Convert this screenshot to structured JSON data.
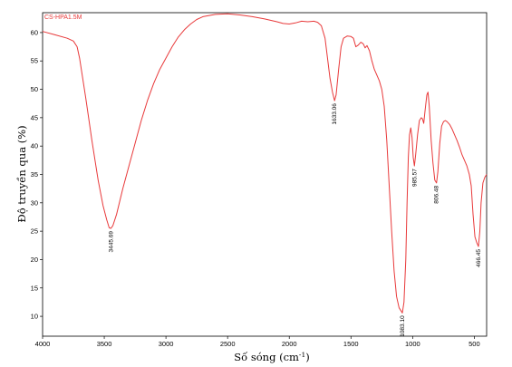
{
  "chart_data": {
    "type": "line",
    "series_label": "CS-HPA1.5M",
    "xlabel": "Số sóng (cm",
    "xlabel_sup": "-1",
    "xlabel_close": ")",
    "ylabel": "Độ truyền qua (%)",
    "xlim": [
      4000,
      400
    ],
    "ylim": [
      6.5,
      63.5
    ],
    "x_reversed": true,
    "grid": false,
    "x_ticks": [
      4000,
      3500,
      3000,
      2500,
      2000,
      1500,
      1000,
      500
    ],
    "y_ticks": [
      10,
      15,
      20,
      25,
      30,
      35,
      40,
      45,
      50,
      55,
      60
    ],
    "line_color": "#e8393a",
    "series": [
      {
        "points": [
          [
            4000,
            60.2
          ],
          [
            3900,
            59.6
          ],
          [
            3800,
            59.0
          ],
          [
            3750,
            58.5
          ],
          [
            3720,
            57.5
          ],
          [
            3700,
            55.5
          ],
          [
            3650,
            48.5
          ],
          [
            3600,
            41.0
          ],
          [
            3550,
            34.0
          ],
          [
            3510,
            29.5
          ],
          [
            3480,
            27.0
          ],
          [
            3460,
            25.6
          ],
          [
            3445.69,
            25.5
          ],
          [
            3430,
            26.0
          ],
          [
            3400,
            28.0
          ],
          [
            3350,
            32.5
          ],
          [
            3300,
            36.5
          ],
          [
            3250,
            40.5
          ],
          [
            3200,
            44.5
          ],
          [
            3150,
            48.0
          ],
          [
            3100,
            51.0
          ],
          [
            3050,
            53.5
          ],
          [
            3000,
            55.5
          ],
          [
            2950,
            57.5
          ],
          [
            2900,
            59.2
          ],
          [
            2850,
            60.5
          ],
          [
            2800,
            61.5
          ],
          [
            2750,
            62.3
          ],
          [
            2700,
            62.8
          ],
          [
            2600,
            63.2
          ],
          [
            2500,
            63.3
          ],
          [
            2400,
            63.1
          ],
          [
            2300,
            62.8
          ],
          [
            2200,
            62.4
          ],
          [
            2100,
            61.9
          ],
          [
            2050,
            61.6
          ],
          [
            2000,
            61.5
          ],
          [
            1950,
            61.7
          ],
          [
            1900,
            62.0
          ],
          [
            1850,
            61.9
          ],
          [
            1800,
            62.0
          ],
          [
            1770,
            61.8
          ],
          [
            1740,
            61.2
          ],
          [
            1710,
            59.0
          ],
          [
            1690,
            55.5
          ],
          [
            1670,
            52.0
          ],
          [
            1650,
            49.5
          ],
          [
            1633.06,
            48.0
          ],
          [
            1620,
            49.0
          ],
          [
            1600,
            53.5
          ],
          [
            1580,
            57.5
          ],
          [
            1560,
            59.0
          ],
          [
            1530,
            59.4
          ],
          [
            1500,
            59.3
          ],
          [
            1480,
            59.0
          ],
          [
            1460,
            57.5
          ],
          [
            1440,
            57.8
          ],
          [
            1420,
            58.3
          ],
          [
            1400,
            58.0
          ],
          [
            1385,
            57.3
          ],
          [
            1370,
            57.7
          ],
          [
            1350,
            56.8
          ],
          [
            1330,
            55.0
          ],
          [
            1310,
            53.5
          ],
          [
            1290,
            52.5
          ],
          [
            1270,
            51.5
          ],
          [
            1250,
            50.0
          ],
          [
            1230,
            47.0
          ],
          [
            1210,
            41.0
          ],
          [
            1190,
            33.0
          ],
          [
            1170,
            25.0
          ],
          [
            1150,
            18.0
          ],
          [
            1130,
            13.5
          ],
          [
            1110,
            11.5
          ],
          [
            1083.1,
            10.6
          ],
          [
            1070,
            12.5
          ],
          [
            1055,
            20.0
          ],
          [
            1045,
            30.0
          ],
          [
            1035,
            38.0
          ],
          [
            1025,
            42.0
          ],
          [
            1015,
            43.2
          ],
          [
            1005,
            41.5
          ],
          [
            995,
            38.0
          ],
          [
            985.57,
            36.5
          ],
          [
            975,
            38.5
          ],
          [
            960,
            42.0
          ],
          [
            945,
            44.5
          ],
          [
            930,
            45.0
          ],
          [
            920,
            44.8
          ],
          [
            910,
            44.0
          ],
          [
            900,
            46.0
          ],
          [
            885,
            49.0
          ],
          [
            875,
            49.5
          ],
          [
            865,
            47.0
          ],
          [
            850,
            41.0
          ],
          [
            835,
            37.0
          ],
          [
            820,
            34.0
          ],
          [
            806.48,
            33.5
          ],
          [
            795,
            35.5
          ],
          [
            780,
            40.5
          ],
          [
            765,
            43.5
          ],
          [
            750,
            44.3
          ],
          [
            735,
            44.5
          ],
          [
            720,
            44.3
          ],
          [
            700,
            43.8
          ],
          [
            680,
            43.0
          ],
          [
            660,
            42.0
          ],
          [
            640,
            41.0
          ],
          [
            620,
            39.8
          ],
          [
            600,
            38.5
          ],
          [
            580,
            37.5
          ],
          [
            560,
            36.5
          ],
          [
            540,
            35.0
          ],
          [
            525,
            33.0
          ],
          [
            510,
            28.0
          ],
          [
            495,
            24.0
          ],
          [
            480,
            23.0
          ],
          [
            466.45,
            22.3
          ],
          [
            455,
            25.0
          ],
          [
            445,
            30.0
          ],
          [
            430,
            33.5
          ],
          [
            415,
            34.5
          ],
          [
            400,
            35.0
          ]
        ]
      }
    ],
    "annotations": [
      {
        "x": 3445.69,
        "y": 25.5,
        "label": "3445.69"
      },
      {
        "x": 1633.06,
        "y": 48.0,
        "label": "1633.06"
      },
      {
        "x": 1083.1,
        "y": 10.6,
        "label": "1083.10"
      },
      {
        "x": 985.57,
        "y": 36.5,
        "label": "985.57"
      },
      {
        "x": 806.48,
        "y": 33.5,
        "label": "806.48"
      },
      {
        "x": 466.45,
        "y": 22.3,
        "label": "466.45"
      }
    ]
  }
}
